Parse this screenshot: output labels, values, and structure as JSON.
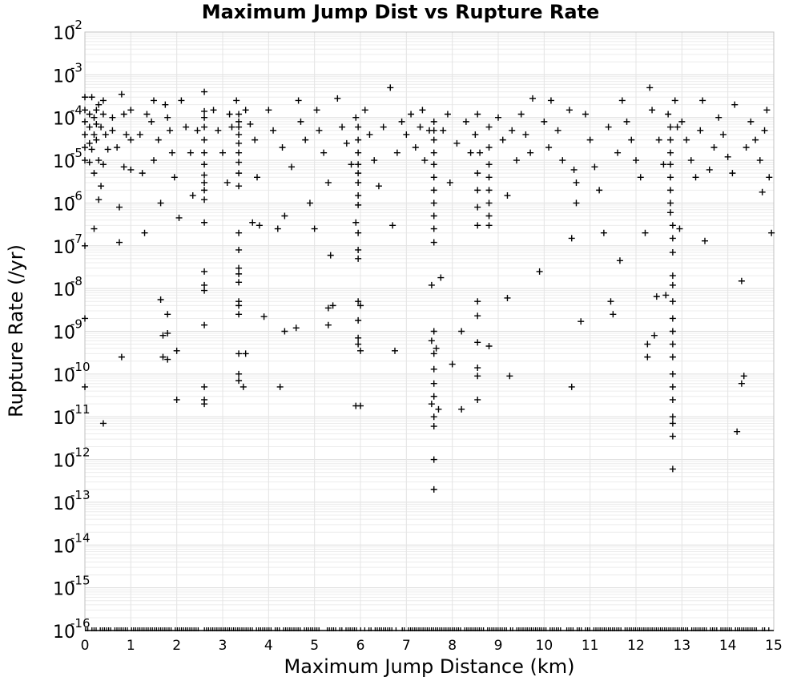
{
  "chart_data": {
    "type": "scatter",
    "title": "Maximum Jump Dist vs Rupture Rate",
    "xlabel": "Maximum Jump Distance (km)",
    "ylabel": "Rupture Rate (/yr)",
    "xlim": [
      0,
      15
    ],
    "ylim": [
      1e-16,
      0.01
    ],
    "yscale": "log",
    "grid": true,
    "marker": "plus",
    "marker_color": "#000000",
    "x_ticks": [
      "0",
      "1",
      "2",
      "3",
      "4",
      "5",
      "6",
      "7",
      "8",
      "9",
      "10",
      "11",
      "12",
      "13",
      "14",
      "15"
    ],
    "y_ticks": [
      {
        "base": "10",
        "exp": "-2"
      },
      {
        "base": "10",
        "exp": "-3"
      },
      {
        "base": "10",
        "exp": "-4"
      },
      {
        "base": "10",
        "exp": "-5"
      },
      {
        "base": "10",
        "exp": "-6"
      },
      {
        "base": "10",
        "exp": "-7"
      },
      {
        "base": "10",
        "exp": "-8"
      },
      {
        "base": "10",
        "exp": "-9"
      },
      {
        "base": "10",
        "exp": "-10"
      },
      {
        "base": "10",
        "exp": "-11"
      },
      {
        "base": "10",
        "exp": "-12"
      },
      {
        "base": "10",
        "exp": "-13"
      },
      {
        "base": "10",
        "exp": "-14"
      },
      {
        "base": "10",
        "exp": "-15"
      },
      {
        "base": "10",
        "exp": "-16"
      }
    ],
    "points": [
      [
        0.0,
        0.0003
      ],
      [
        0.0,
        0.00015
      ],
      [
        0.0,
        8e-05
      ],
      [
        0.0,
        4e-05
      ],
      [
        0.0,
        2e-05
      ],
      [
        0.0,
        1e-05
      ],
      [
        0.0,
        1e-07
      ],
      [
        0.0,
        2e-09
      ],
      [
        0.0,
        5e-11
      ],
      [
        0.1,
        0.00012
      ],
      [
        0.1,
        6e-05
      ],
      [
        0.1,
        2.5e-05
      ],
      [
        0.1,
        9e-06
      ],
      [
        0.15,
        0.0003
      ],
      [
        0.15,
        1.8e-05
      ],
      [
        0.2,
        0.0001
      ],
      [
        0.2,
        4e-05
      ],
      [
        0.2,
        5e-06
      ],
      [
        0.2,
        2.5e-07
      ],
      [
        0.25,
        0.00015
      ],
      [
        0.25,
        7e-05
      ],
      [
        0.25,
        3e-05
      ],
      [
        0.3,
        0.0002
      ],
      [
        0.3,
        1e-05
      ],
      [
        0.3,
        1.2e-06
      ],
      [
        0.35,
        6e-05
      ],
      [
        0.35,
        2.5e-06
      ],
      [
        0.4,
        0.00025
      ],
      [
        0.4,
        0.00012
      ],
      [
        0.4,
        8e-06
      ],
      [
        0.4,
        7e-12
      ],
      [
        0.45,
        4e-05
      ],
      [
        0.5,
        1.8e-05
      ],
      [
        0.6,
        0.0001
      ],
      [
        0.6,
        5e-05
      ],
      [
        0.7,
        2e-05
      ],
      [
        0.75,
        8e-07
      ],
      [
        0.75,
        1.2e-07
      ],
      [
        0.8,
        0.00035
      ],
      [
        0.8,
        2.5e-10
      ],
      [
        0.85,
        0.00012
      ],
      [
        0.85,
        7e-06
      ],
      [
        0.9,
        4e-05
      ],
      [
        1.0,
        0.00015
      ],
      [
        1.0,
        3e-05
      ],
      [
        1.0,
        6e-06
      ],
      [
        1.2,
        4e-05
      ],
      [
        1.25,
        5e-06
      ],
      [
        1.3,
        2e-07
      ],
      [
        1.35,
        0.00012
      ],
      [
        1.45,
        8e-05
      ],
      [
        1.5,
        0.00025
      ],
      [
        1.5,
        1e-05
      ],
      [
        1.6,
        3e-05
      ],
      [
        1.65,
        1e-06
      ],
      [
        1.65,
        5.5e-09
      ],
      [
        1.7,
        8e-10
      ],
      [
        1.7,
        2.5e-10
      ],
      [
        1.75,
        0.0002
      ],
      [
        1.8,
        0.0001
      ],
      [
        1.8,
        2.5e-09
      ],
      [
        1.8,
        9e-10
      ],
      [
        1.8,
        2.2e-10
      ],
      [
        1.85,
        5e-05
      ],
      [
        1.9,
        1.5e-05
      ],
      [
        1.95,
        4e-06
      ],
      [
        2.0,
        3.5e-10
      ],
      [
        2.0,
        2.5e-11
      ],
      [
        2.05,
        4.5e-07
      ],
      [
        2.1,
        0.00025
      ],
      [
        2.2,
        6e-05
      ],
      [
        2.3,
        1.5e-05
      ],
      [
        2.35,
        1.5e-06
      ],
      [
        2.45,
        5e-05
      ],
      [
        2.6,
        0.0004
      ],
      [
        2.6,
        0.00014
      ],
      [
        2.6,
        0.0001
      ],
      [
        2.6,
        6e-05
      ],
      [
        2.6,
        3e-05
      ],
      [
        2.6,
        1.5e-05
      ],
      [
        2.6,
        8e-06
      ],
      [
        2.6,
        4.5e-06
      ],
      [
        2.6,
        3e-06
      ],
      [
        2.6,
        2e-06
      ],
      [
        2.6,
        1.2e-06
      ],
      [
        2.6,
        3.5e-07
      ],
      [
        2.6,
        2.5e-08
      ],
      [
        2.6,
        1.2e-08
      ],
      [
        2.6,
        9e-09
      ],
      [
        2.6,
        1.4e-09
      ],
      [
        2.6,
        5e-11
      ],
      [
        2.6,
        2.5e-11
      ],
      [
        2.6,
        2e-11
      ],
      [
        2.8,
        0.00015
      ],
      [
        2.9,
        5e-05
      ],
      [
        3.0,
        1.5e-05
      ],
      [
        3.1,
        3e-06
      ],
      [
        3.15,
        0.00012
      ],
      [
        3.2,
        6e-05
      ],
      [
        3.3,
        0.00025
      ],
      [
        3.35,
        0.00012
      ],
      [
        3.35,
        8e-05
      ],
      [
        3.35,
        6e-05
      ],
      [
        3.35,
        4e-05
      ],
      [
        3.35,
        2.5e-05
      ],
      [
        3.35,
        1.5e-05
      ],
      [
        3.35,
        9e-06
      ],
      [
        3.35,
        5e-06
      ],
      [
        3.35,
        2.5e-06
      ],
      [
        3.35,
        2e-07
      ],
      [
        3.35,
        8e-08
      ],
      [
        3.35,
        3e-08
      ],
      [
        3.35,
        2.2e-08
      ],
      [
        3.35,
        1.4e-08
      ],
      [
        3.35,
        5e-09
      ],
      [
        3.35,
        4e-09
      ],
      [
        3.35,
        2.5e-09
      ],
      [
        3.35,
        3e-10
      ],
      [
        3.35,
        1e-10
      ],
      [
        3.35,
        7e-11
      ],
      [
        3.45,
        5e-11
      ],
      [
        3.5,
        3e-10
      ],
      [
        3.5,
        0.00015
      ],
      [
        3.6,
        7e-05
      ],
      [
        3.65,
        3.5e-07
      ],
      [
        3.7,
        3e-05
      ],
      [
        3.75,
        4e-06
      ],
      [
        3.8,
        3e-07
      ],
      [
        3.9,
        2.2e-09
      ],
      [
        4.0,
        0.00015
      ],
      [
        4.1,
        5e-05
      ],
      [
        4.2,
        2.5e-07
      ],
      [
        4.25,
        5e-11
      ],
      [
        4.3,
        2e-05
      ],
      [
        4.35,
        5e-07
      ],
      [
        4.35,
        1e-09
      ],
      [
        4.5,
        7e-06
      ],
      [
        4.6,
        1.2e-09
      ],
      [
        4.65,
        0.00025
      ],
      [
        4.7,
        8e-05
      ],
      [
        4.8,
        3e-05
      ],
      [
        4.9,
        1e-06
      ],
      [
        5.0,
        2.5e-07
      ],
      [
        5.05,
        0.00015
      ],
      [
        5.1,
        5e-05
      ],
      [
        5.2,
        1.5e-05
      ],
      [
        5.3,
        3e-06
      ],
      [
        5.3,
        3.5e-09
      ],
      [
        5.3,
        1.4e-09
      ],
      [
        5.35,
        6e-08
      ],
      [
        5.4,
        4e-09
      ],
      [
        5.5,
        0.00028
      ],
      [
        5.6,
        6e-05
      ],
      [
        5.7,
        2.5e-05
      ],
      [
        5.8,
        8e-06
      ],
      [
        5.9,
        0.0001
      ],
      [
        5.9,
        3.5e-07
      ],
      [
        5.9,
        1.8e-11
      ],
      [
        5.95,
        6e-05
      ],
      [
        5.95,
        3e-05
      ],
      [
        5.95,
        1.5e-05
      ],
      [
        5.95,
        8e-06
      ],
      [
        5.95,
        5e-06
      ],
      [
        5.95,
        3e-06
      ],
      [
        5.95,
        1.5e-06
      ],
      [
        5.95,
        9e-07
      ],
      [
        5.95,
        2e-07
      ],
      [
        5.95,
        8e-08
      ],
      [
        5.95,
        5e-08
      ],
      [
        5.95,
        5e-09
      ],
      [
        5.95,
        1.8e-09
      ],
      [
        5.95,
        7e-10
      ],
      [
        5.95,
        5e-10
      ],
      [
        6.0,
        3.5e-10
      ],
      [
        6.0,
        1.8e-11
      ],
      [
        6.0,
        4e-09
      ],
      [
        6.1,
        0.00015
      ],
      [
        6.2,
        4e-05
      ],
      [
        6.3,
        1e-05
      ],
      [
        6.4,
        2.5e-06
      ],
      [
        6.5,
        6e-05
      ],
      [
        6.65,
        0.0005
      ],
      [
        6.7,
        3e-07
      ],
      [
        6.75,
        3.5e-10
      ],
      [
        6.8,
        1.5e-05
      ],
      [
        6.9,
        8e-05
      ],
      [
        7.0,
        4e-05
      ],
      [
        7.1,
        0.00012
      ],
      [
        7.2,
        2e-05
      ],
      [
        7.3,
        6e-05
      ],
      [
        7.35,
        0.00015
      ],
      [
        7.4,
        1e-05
      ],
      [
        7.5,
        5e-05
      ],
      [
        7.55,
        1.2e-08
      ],
      [
        7.55,
        6e-10
      ],
      [
        7.55,
        2e-11
      ],
      [
        7.6,
        8e-05
      ],
      [
        7.6,
        5e-05
      ],
      [
        7.6,
        3e-05
      ],
      [
        7.6,
        1.5e-05
      ],
      [
        7.6,
        8e-06
      ],
      [
        7.6,
        4e-06
      ],
      [
        7.6,
        2e-06
      ],
      [
        7.6,
        1e-06
      ],
      [
        7.6,
        5e-07
      ],
      [
        7.6,
        2.5e-07
      ],
      [
        7.6,
        1.2e-07
      ],
      [
        7.6,
        1e-09
      ],
      [
        7.6,
        3e-10
      ],
      [
        7.6,
        1.3e-10
      ],
      [
        7.6,
        6e-11
      ],
      [
        7.6,
        3e-11
      ],
      [
        7.6,
        1e-11
      ],
      [
        7.6,
        6e-12
      ],
      [
        7.6,
        1e-12
      ],
      [
        7.6,
        2e-13
      ],
      [
        7.65,
        4e-10
      ],
      [
        7.7,
        1.5e-11
      ],
      [
        7.75,
        1.8e-08
      ],
      [
        7.8,
        5e-05
      ],
      [
        7.9,
        0.00012
      ],
      [
        7.95,
        3e-06
      ],
      [
        8.0,
        1.7e-10
      ],
      [
        8.1,
        2.5e-05
      ],
      [
        8.2,
        1e-09
      ],
      [
        8.2,
        1.5e-11
      ],
      [
        8.3,
        8e-05
      ],
      [
        8.4,
        1.5e-05
      ],
      [
        8.5,
        4e-05
      ],
      [
        8.55,
        0.00012
      ],
      [
        8.55,
        5e-06
      ],
      [
        8.55,
        2e-06
      ],
      [
        8.55,
        8e-07
      ],
      [
        8.55,
        3e-07
      ],
      [
        8.55,
        5e-09
      ],
      [
        8.55,
        2.3e-09
      ],
      [
        8.55,
        5.5e-10
      ],
      [
        8.55,
        1.4e-10
      ],
      [
        8.55,
        9e-11
      ],
      [
        8.55,
        2.5e-11
      ],
      [
        8.6,
        1.5e-05
      ],
      [
        8.8,
        6e-05
      ],
      [
        8.8,
        2e-05
      ],
      [
        8.8,
        8e-06
      ],
      [
        8.8,
        4e-06
      ],
      [
        8.8,
        2e-06
      ],
      [
        8.8,
        1e-06
      ],
      [
        8.8,
        5e-07
      ],
      [
        8.8,
        3e-07
      ],
      [
        8.8,
        4.5e-10
      ],
      [
        9.0,
        0.0001
      ],
      [
        9.1,
        3e-05
      ],
      [
        9.2,
        1.5e-06
      ],
      [
        9.2,
        6e-09
      ],
      [
        9.25,
        9e-11
      ],
      [
        9.3,
        5e-05
      ],
      [
        9.4,
        1e-05
      ],
      [
        9.5,
        0.00012
      ],
      [
        9.6,
        4e-05
      ],
      [
        9.7,
        1.5e-05
      ],
      [
        9.75,
        0.00028
      ],
      [
        9.9,
        2.5e-08
      ],
      [
        10.0,
        8e-05
      ],
      [
        10.1,
        2e-05
      ],
      [
        10.15,
        0.00025
      ],
      [
        10.3,
        5e-05
      ],
      [
        10.4,
        1e-05
      ],
      [
        10.55,
        0.00015
      ],
      [
        10.6,
        1.5e-07
      ],
      [
        10.6,
        5e-11
      ],
      [
        10.65,
        6e-06
      ],
      [
        10.7,
        3e-06
      ],
      [
        10.7,
        1e-06
      ],
      [
        10.8,
        1.7e-09
      ],
      [
        10.9,
        0.00012
      ],
      [
        11.0,
        3e-05
      ],
      [
        11.1,
        7e-06
      ],
      [
        11.2,
        2e-06
      ],
      [
        11.3,
        2e-07
      ],
      [
        11.4,
        6e-05
      ],
      [
        11.45,
        5e-09
      ],
      [
        11.5,
        2.5e-09
      ],
      [
        11.6,
        1.5e-05
      ],
      [
        11.65,
        4.5e-08
      ],
      [
        11.7,
        0.00025
      ],
      [
        11.8,
        8e-05
      ],
      [
        11.9,
        3e-05
      ],
      [
        12.0,
        1e-05
      ],
      [
        12.1,
        4e-06
      ],
      [
        12.2,
        2e-07
      ],
      [
        12.25,
        5e-10
      ],
      [
        12.25,
        2.5e-10
      ],
      [
        12.3,
        0.0005
      ],
      [
        12.35,
        0.00015
      ],
      [
        12.4,
        8e-10
      ],
      [
        12.45,
        6.5e-09
      ],
      [
        12.5,
        3e-05
      ],
      [
        12.6,
        8e-06
      ],
      [
        12.65,
        7e-09
      ],
      [
        12.7,
        0.00012
      ],
      [
        12.75,
        6e-05
      ],
      [
        12.75,
        3e-05
      ],
      [
        12.75,
        1.5e-05
      ],
      [
        12.75,
        8e-06
      ],
      [
        12.75,
        4e-06
      ],
      [
        12.75,
        2e-06
      ],
      [
        12.75,
        1e-06
      ],
      [
        12.75,
        6e-07
      ],
      [
        12.8,
        3e-07
      ],
      [
        12.8,
        1.5e-07
      ],
      [
        12.8,
        7e-08
      ],
      [
        12.8,
        2e-08
      ],
      [
        12.8,
        1.2e-08
      ],
      [
        12.8,
        5e-09
      ],
      [
        12.8,
        2e-09
      ],
      [
        12.8,
        1e-09
      ],
      [
        12.8,
        5e-10
      ],
      [
        12.8,
        2.5e-10
      ],
      [
        12.8,
        1e-10
      ],
      [
        12.8,
        5e-11
      ],
      [
        12.8,
        2.5e-11
      ],
      [
        12.8,
        1e-11
      ],
      [
        12.8,
        7e-12
      ],
      [
        12.8,
        3.5e-12
      ],
      [
        12.8,
        6e-13
      ],
      [
        12.85,
        0.00025
      ],
      [
        12.9,
        6e-05
      ],
      [
        12.95,
        2.5e-07
      ],
      [
        13.0,
        8e-05
      ],
      [
        13.1,
        3e-05
      ],
      [
        13.2,
        1e-05
      ],
      [
        13.3,
        4e-06
      ],
      [
        13.4,
        5e-05
      ],
      [
        13.45,
        0.00025
      ],
      [
        13.5,
        1.3e-07
      ],
      [
        13.6,
        6e-06
      ],
      [
        13.7,
        2e-05
      ],
      [
        13.8,
        0.0001
      ],
      [
        13.9,
        4e-05
      ],
      [
        14.0,
        1.2e-05
      ],
      [
        14.1,
        5e-06
      ],
      [
        14.15,
        0.0002
      ],
      [
        14.2,
        4.5e-12
      ],
      [
        14.3,
        1.5e-08
      ],
      [
        14.3,
        6e-11
      ],
      [
        14.35,
        9e-11
      ],
      [
        14.4,
        2e-05
      ],
      [
        14.5,
        8e-05
      ],
      [
        14.6,
        3e-05
      ],
      [
        14.7,
        1e-05
      ],
      [
        14.75,
        1.8e-06
      ],
      [
        14.8,
        5e-05
      ],
      [
        14.85,
        0.00015
      ],
      [
        14.9,
        4e-06
      ],
      [
        14.95,
        2e-07
      ]
    ],
    "floor_value": 1e-16
  }
}
